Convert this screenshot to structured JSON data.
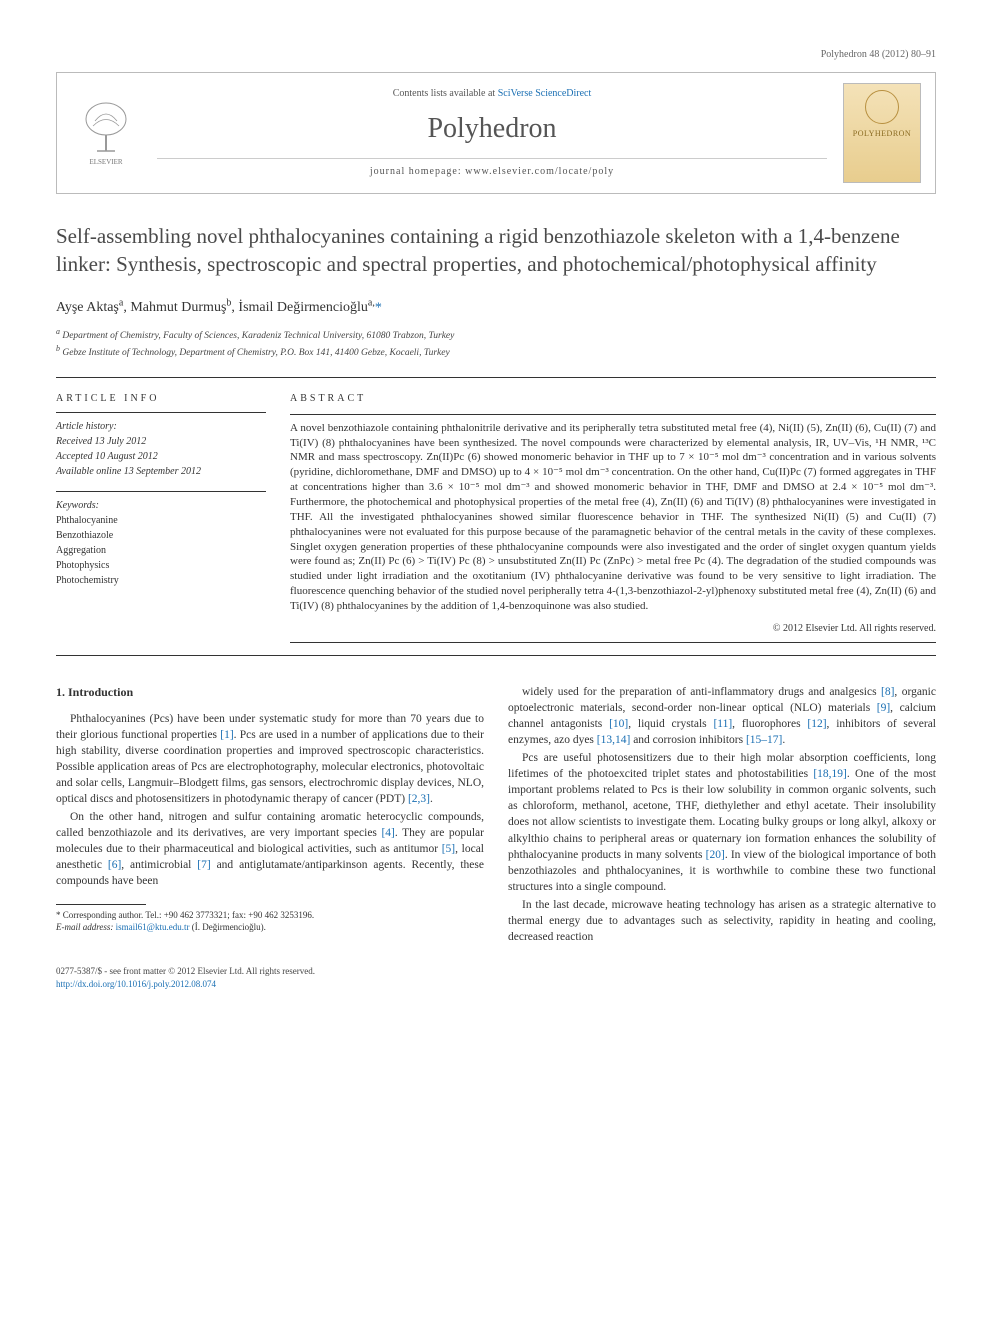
{
  "running_head": "Polyhedron 48 (2012) 80–91",
  "masthead": {
    "contents_prefix": "Contents lists available at ",
    "contents_link": "SciVerse ScienceDirect",
    "journal": "Polyhedron",
    "homepage_prefix": "journal homepage: ",
    "homepage_url": "www.elsevier.com/locate/poly",
    "cover_label": "POLYHEDRON",
    "publisher": "ELSEVIER"
  },
  "title": "Self-assembling novel phthalocyanines containing a rigid benzothiazole skeleton with a 1,4-benzene linker: Synthesis, spectroscopic and spectral properties, and photochemical/photophysical affinity",
  "authors_html": "Ayşe Aktaş<sup>a</sup>, Mahmut Durmuş<sup>b</sup>, İsmail Değirmencioğlu<sup>a,</sup>",
  "affiliations": {
    "a": "Department of Chemistry, Faculty of Sciences, Karadeniz Technical University, 61080 Trabzon, Turkey",
    "b": "Gebze Institute of Technology, Department of Chemistry, P.O. Box 141, 41400 Gebze, Kocaeli, Turkey"
  },
  "info": {
    "heading": "ARTICLE INFO",
    "history_label": "Article history:",
    "received": "Received 13 July 2012",
    "accepted": "Accepted 10 August 2012",
    "online": "Available online 13 September 2012",
    "keywords_label": "Keywords:",
    "keywords": [
      "Phthalocyanine",
      "Benzothiazole",
      "Aggregation",
      "Photophysics",
      "Photochemistry"
    ]
  },
  "abstract": {
    "heading": "ABSTRACT",
    "text": "A novel benzothiazole containing phthalonitrile derivative and its peripherally tetra substituted metal free (4), Ni(II) (5), Zn(II) (6), Cu(II) (7) and Ti(IV) (8) phthalocyanines have been synthesized. The novel compounds were characterized by elemental analysis, IR, UV–Vis, ¹H NMR, ¹³C NMR and mass spectroscopy. Zn(II)Pc (6) showed monomeric behavior in THF up to 7 × 10⁻⁵ mol dm⁻³ concentration and in various solvents (pyridine, dichloromethane, DMF and DMSO) up to 4 × 10⁻⁵ mol dm⁻³ concentration. On the other hand, Cu(II)Pc (7) formed aggregates in THF at concentrations higher than 3.6 × 10⁻⁵ mol dm⁻³ and showed monomeric behavior in THF, DMF and DMSO at 2.4 × 10⁻⁵ mol dm⁻³. Furthermore, the photochemical and photophysical properties of the metal free (4), Zn(II) (6) and Ti(IV) (8) phthalocyanines were investigated in THF. All the investigated phthalocyanines showed similar fluorescence behavior in THF. The synthesized Ni(II) (5) and Cu(II) (7) phthalocyanines were not evaluated for this purpose because of the paramagnetic behavior of the central metals in the cavity of these complexes. Singlet oxygen generation properties of these phthalocyanine compounds were also investigated and the order of singlet oxygen quantum yields were found as; Zn(II) Pc (6) > Ti(IV) Pc (8) > unsubstituted Zn(II) Pc (ZnPc) > metal free Pc (4). The degradation of the studied compounds was studied under light irradiation and the oxotitanium (IV) phthalocyanine derivative was found to be very sensitive to light irradiation. The fluorescence quenching behavior of the studied novel peripherally tetra 4-(1,3-benzothiazol-2-yl)phenoxy substituted metal free (4), Zn(II) (6) and Ti(IV) (8) phthalocyanines by the addition of 1,4-benzoquinone was also studied.",
    "copyright": "© 2012 Elsevier Ltd. All rights reserved."
  },
  "body": {
    "section_heading": "1. Introduction",
    "p1": "Phthalocyanines (Pcs) have been under systematic study for more than 70 years due to their glorious functional properties [1]. Pcs are used in a number of applications due to their high stability, diverse coordination properties and improved spectroscopic characteristics. Possible application areas of Pcs are electrophotography, molecular electronics, photovoltaic and solar cells, Langmuir–Blodgett films, gas sensors, electrochromic display devices, NLO, optical discs and photosensitizers in photodynamic therapy of cancer (PDT) [2,3].",
    "p2": "On the other hand, nitrogen and sulfur containing aromatic heterocyclic compounds, called benzothiazole and its derivatives, are very important species [4]. They are popular molecules due to their pharmaceutical and biological activities, such as antitumor [5], local anesthetic [6], antimicrobial [7] and antiglutamate/antiparkinson agents. Recently, these compounds have been",
    "p3": "widely used for the preparation of anti-inflammatory drugs and analgesics [8], organic optoelectronic materials, second-order non-linear optical (NLO) materials [9], calcium channel antagonists [10], liquid crystals [11], fluorophores [12], inhibitors of several enzymes, azo dyes [13,14] and corrosion inhibitors [15–17].",
    "p4": "Pcs are useful photosensitizers due to their high molar absorption coefficients, long lifetimes of the photoexcited triplet states and photostabilities [18,19]. One of the most important problems related to Pcs is their low solubility in common organic solvents, such as chloroform, methanol, acetone, THF, diethylether and ethyl acetate. Their insolubility does not allow scientists to investigate them. Locating bulky groups or long alkyl, alkoxy or alkylthio chains to peripheral areas or quaternary ion formation enhances the solubility of phthalocyanine products in many solvents [20]. In view of the biological importance of both benzothiazoles and phthalocyanines, it is worthwhile to combine these two functional structures into a single compound.",
    "p5": "In the last decade, microwave heating technology has arisen as a strategic alternative to thermal energy due to advantages such as selectivity, rapidity in heating and cooling, decreased reaction"
  },
  "footnote": {
    "corr": "Corresponding author. Tel.: +90 462 3773321; fax: +90 462 3253196.",
    "email_label": "E-mail address:",
    "email": "ismail61@ktu.edu.tr",
    "email_who": "(İ. Değirmencioğlu)."
  },
  "footer": {
    "issn": "0277-5387/$ - see front matter © 2012 Elsevier Ltd. All rights reserved.",
    "doi_label": "http://dx.doi.org/",
    "doi": "10.1016/j.poly.2012.08.074"
  },
  "colors": {
    "link": "#1a6fb3",
    "text": "#333333",
    "muted": "#666666",
    "rule": "#333333"
  }
}
